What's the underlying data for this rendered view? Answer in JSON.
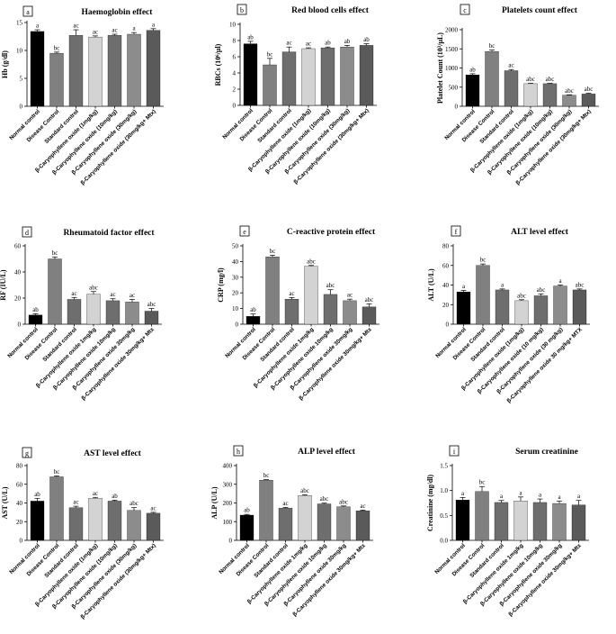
{
  "figure_title": "",
  "bar_colors": [
    "#000000",
    "#808080",
    "#6e6e6e",
    "#d3d3d3",
    "#6e6e6e",
    "#8c8c8c",
    "#5a5a5a"
  ],
  "chart_data": [
    {
      "type": "bar",
      "letter": "a",
      "title": "Haemoglobin effect",
      "ylabel": "Hb (g/dl)",
      "ylim": [
        0,
        15
      ],
      "yticks": [
        0,
        5,
        10,
        15
      ],
      "categories": [
        "Normal control",
        "Disease Control",
        "Standard control",
        "β-Caryophyllene oxide (1mg/kg)",
        "β-Caryophyllene oxide (10mg/kg)",
        "β-Caryophyllene oxide (30mg/kg)",
        "β-Caryophyllene oxide (30mg/kg+ Mtx)"
      ],
      "values": [
        13.4,
        9.5,
        12.7,
        12.4,
        12.7,
        12.9,
        13.6
      ],
      "errors": [
        0.3,
        0.2,
        1.0,
        0.2,
        0.2,
        0.3,
        0.3
      ],
      "labels": [
        "a",
        "bc",
        "ac",
        "ac",
        "ac",
        "a",
        "a"
      ]
    },
    {
      "type": "bar",
      "letter": "b",
      "title": "Red blood cells effect",
      "ylabel": "RBCs (10⁶/μl)",
      "ylim": [
        0,
        10
      ],
      "yticks": [
        0,
        2,
        4,
        6,
        8,
        10
      ],
      "categories": [
        "Normal control",
        "Disease Control",
        "Standard control",
        "β-Caryophyllene oxide (1mg/kg)",
        "β-Caryophyllene oxide (10mg/kg)",
        "β-Caryophyllene oxide (30mg/kg)",
        "β-Caryophyllene oxide (30mg/kg+ Mtx)"
      ],
      "values": [
        7.6,
        5.0,
        6.6,
        7.0,
        7.1,
        7.2,
        7.4
      ],
      "errors": [
        0.3,
        0.8,
        0.6,
        0.1,
        0.1,
        0.2,
        0.2
      ],
      "labels": [
        "ab",
        "bc",
        "ac",
        "ac",
        "ab",
        "ab",
        "ab"
      ]
    },
    {
      "type": "bar",
      "letter": "c",
      "title": "Platelets count effect",
      "ylabel": "Platelet Count (10³/μL)",
      "ylim": [
        0,
        2000
      ],
      "yticks": [
        0,
        500,
        1000,
        1500,
        2000
      ],
      "categories": [
        "Normal control",
        "Disease Control",
        "Standard control",
        "β-Caryophyllene oxide (1mg/kg)",
        "β-Caryophyllene oxide (10mg/kg)",
        "β-Caryophyllene oxide (30mg/kg)",
        "β-Caryophyllene oxide (30mg/kg+ Mtx)"
      ],
      "values": [
        820,
        1430,
        930,
        590,
        590,
        290,
        320
      ],
      "errors": [
        30,
        40,
        30,
        10,
        10,
        10,
        20
      ],
      "labels": [
        "ab",
        "bc",
        "ac",
        "abc",
        "abc",
        "abc",
        "abc"
      ]
    },
    {
      "type": "bar",
      "letter": "d",
      "title": "Rheumatoid factor effect",
      "ylabel": "RF (IU/L)",
      "ylim": [
        0,
        60
      ],
      "yticks": [
        0,
        20,
        40,
        60
      ],
      "categories": [
        "Normal control",
        "Disease Control",
        "Standard control",
        "β-Caryophyllene oxide 1mg/kg",
        "β-Caryophyllene oxide 10mg/kg",
        "β-Caryophyllene oxide 30mg/kg",
        "β-Caryophyllene oxide 30mg/kg+ Mtx"
      ],
      "values": [
        7,
        50,
        19,
        23,
        18,
        17,
        10
      ],
      "errors": [
        1,
        1.5,
        1.5,
        2,
        1.5,
        2,
        2
      ],
      "labels": [
        "ab",
        "bc",
        "ac",
        "abc",
        "ac",
        "ac",
        "abc"
      ]
    },
    {
      "type": "bar",
      "letter": "e",
      "title": "C-reactive protein effect",
      "ylabel": "CRP (mg/l)",
      "ylim": [
        0,
        50
      ],
      "yticks": [
        0,
        10,
        20,
        30,
        40,
        50
      ],
      "categories": [
        "Normal control",
        "Disease Control",
        "Standard control",
        "β-Caryophyllene oxide 1mg/kg",
        "β-Caryophyllene oxide 10mg/kg",
        "β-Caryophyllene oxide 30mg/kg",
        "β-Caryophyllene oxide 30mg/kg+ Mtx"
      ],
      "values": [
        5,
        43,
        16,
        37,
        19,
        15,
        11
      ],
      "errors": [
        1.5,
        1,
        1,
        0.5,
        3,
        1,
        2
      ],
      "labels": [
        "ab",
        "bc",
        "ac",
        "abc",
        "abc",
        "ac",
        "abc"
      ]
    },
    {
      "type": "bar",
      "letter": "f",
      "title": "ALT level effect",
      "ylabel": "ALT (U/L)",
      "ylim": [
        0,
        80
      ],
      "yticks": [
        0,
        20,
        40,
        60,
        80
      ],
      "categories": [
        "Normal control",
        "Disease Control",
        "Standard control",
        "β-Caryophyllene oxide (1mg/kg)",
        "β-Caryophyllene oxide (10 mg/kg)",
        "β-Caryophyllene oxide (30 mg/kg)",
        "β-Caryophyllene oxide 30 mg/kg+ MTX"
      ],
      "values": [
        33,
        60,
        35,
        24,
        29,
        39,
        35
      ],
      "errors": [
        1.5,
        1.5,
        1,
        1,
        2,
        1,
        1
      ],
      "labels": [
        "a",
        "bc",
        "a",
        "abc",
        "abc",
        "a",
        "abc"
      ]
    },
    {
      "type": "bar",
      "letter": "g",
      "title": "AST level effect",
      "ylabel": "AST (U/L)",
      "ylim": [
        0,
        80
      ],
      "yticks": [
        0,
        20,
        40,
        60,
        80
      ],
      "categories": [
        "Normal control",
        "Disease Control",
        "Standard control",
        "β-Caryophyllene oxide (1mg/kg)",
        "β-Caryophyllene oxide (10mg/kg)",
        "β-Caryophyllene oxide (30mg/kg)",
        "β-Caryophyllene oxide (30mg/kg+ Mtx)"
      ],
      "values": [
        42,
        68,
        35,
        45,
        42,
        32,
        29
      ],
      "errors": [
        3,
        1,
        1.5,
        1,
        1,
        3,
        1
      ],
      "labels": [
        "ab",
        "bc",
        "ac",
        "ac",
        "ab",
        "abc",
        "ac"
      ]
    },
    {
      "type": "bar",
      "letter": "h",
      "title": "ALP level effect",
      "ylabel": "ALP (U/L)",
      "ylim": [
        0,
        400
      ],
      "yticks": [
        0,
        100,
        200,
        300,
        400
      ],
      "categories": [
        "Normal control",
        "Disease Control",
        "Standard control",
        "β-Caryophyllene oxide 1mg/kg",
        "β-Caryophyllene oxide 10mg/kg",
        "β-Caryophyllene oxide 30mg/kg",
        "β-Caryophyllene oxide 30mg/kg+ Mtx"
      ],
      "values": [
        135,
        322,
        172,
        240,
        195,
        180,
        158
      ],
      "errors": [
        4,
        3,
        4,
        4,
        4,
        4,
        4
      ],
      "labels": [
        "ab",
        "bc",
        "ac",
        "abc",
        "abc",
        "abc",
        "ac"
      ]
    },
    {
      "type": "bar",
      "letter": "i",
      "title": "Serum creatinine",
      "ylabel": "Creatinine (mg/dl)",
      "ylim": [
        0,
        1.5
      ],
      "yticks": [
        0,
        0.5,
        1.0,
        1.5
      ],
      "ytick_labels": [
        "0.0",
        "0.5",
        "1.0",
        "1.5"
      ],
      "categories": [
        "Normal control",
        "Disease Control",
        "Standard control",
        "β-Caryophyllene oxide 1mg/kg",
        "β-Caryophyllene oxide 10mg/kg",
        "β-Caryophyllene oxide 30mg/kg",
        "β-Caryophyllene oxide 30mg/kg+ Mtx"
      ],
      "values": [
        0.81,
        0.98,
        0.76,
        0.79,
        0.76,
        0.74,
        0.71
      ],
      "errors": [
        0.05,
        0.1,
        0.04,
        0.08,
        0.07,
        0.05,
        0.09
      ],
      "labels": [
        "a",
        "bc",
        "a",
        "a",
        "a",
        "a",
        "a"
      ]
    }
  ]
}
